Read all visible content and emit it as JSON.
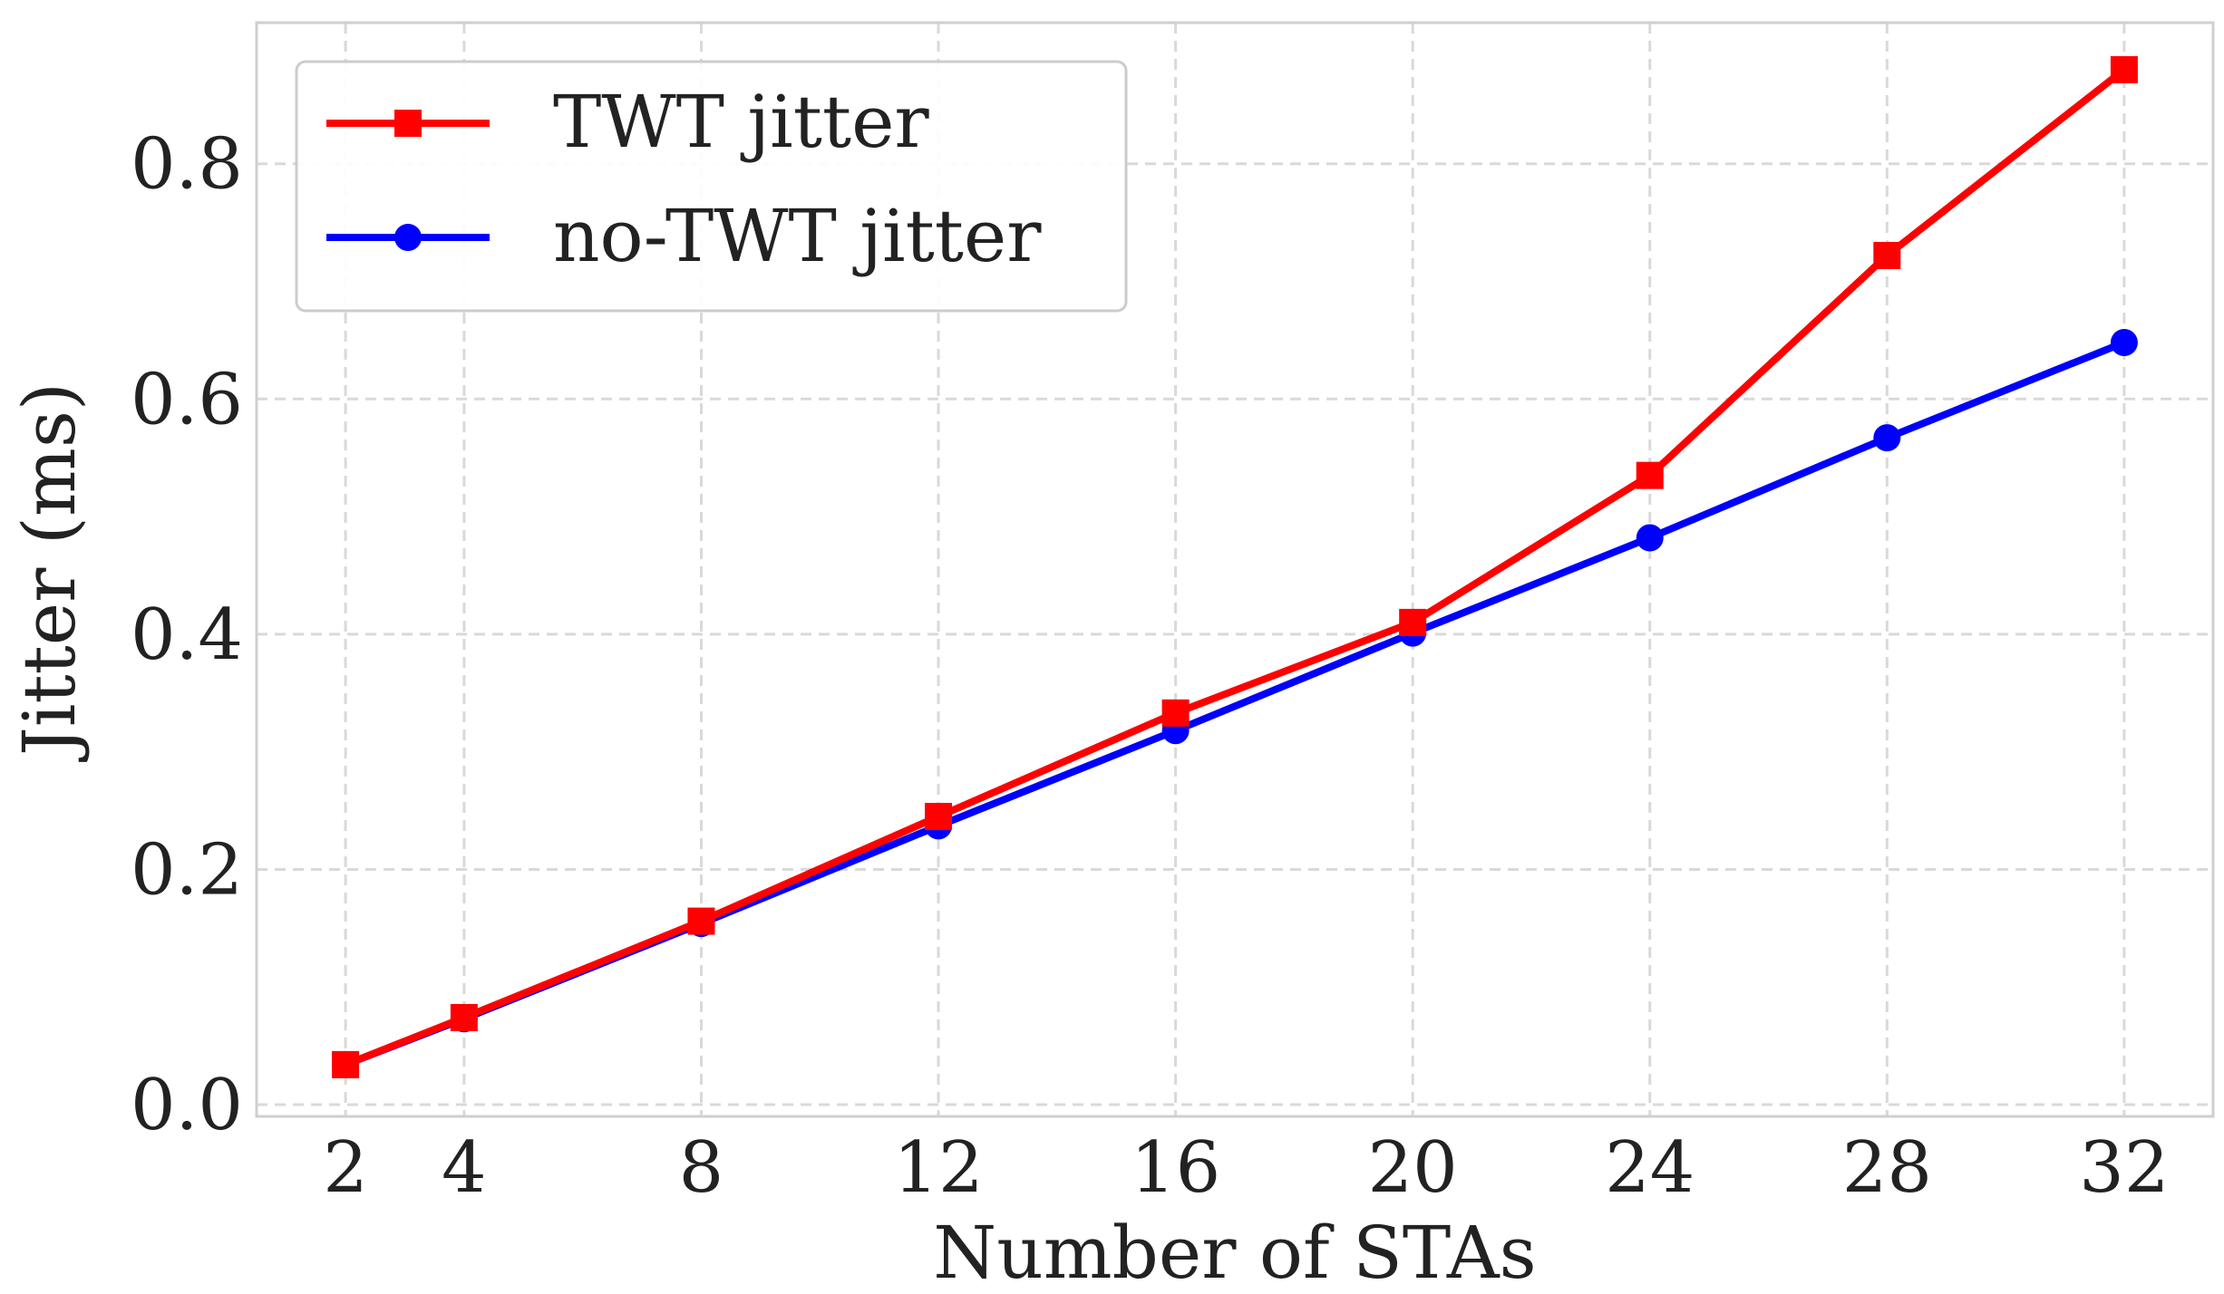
{
  "chart_data": {
    "type": "line",
    "xlabel": "Number of STAs",
    "ylabel": "Jitter (ms)",
    "x": [
      2,
      4,
      8,
      12,
      16,
      20,
      24,
      28,
      32
    ],
    "x_tick_labels": [
      "2",
      "4",
      "8",
      "12",
      "16",
      "20",
      "24",
      "28",
      "32"
    ],
    "y_tick_labels": [
      "0.0",
      "0.2",
      "0.4",
      "0.6",
      "0.8"
    ],
    "y_ticks": [
      0.0,
      0.2,
      0.4,
      0.6,
      0.8
    ],
    "xlim": [
      0.5,
      33.5
    ],
    "ylim": [
      -0.01,
      0.92
    ],
    "grid": true,
    "legend_position": "top-left",
    "series": [
      {
        "name": "TWT jitter",
        "color": "#ff0000",
        "marker": "square",
        "values": [
          0.034,
          0.074,
          0.156,
          0.245,
          0.333,
          0.41,
          0.535,
          0.722,
          0.88
        ]
      },
      {
        "name": "no-TWT jitter",
        "color": "#0000ff",
        "marker": "circle",
        "values": [
          0.034,
          0.073,
          0.154,
          0.237,
          0.318,
          0.401,
          0.482,
          0.567,
          0.648
        ]
      }
    ]
  }
}
